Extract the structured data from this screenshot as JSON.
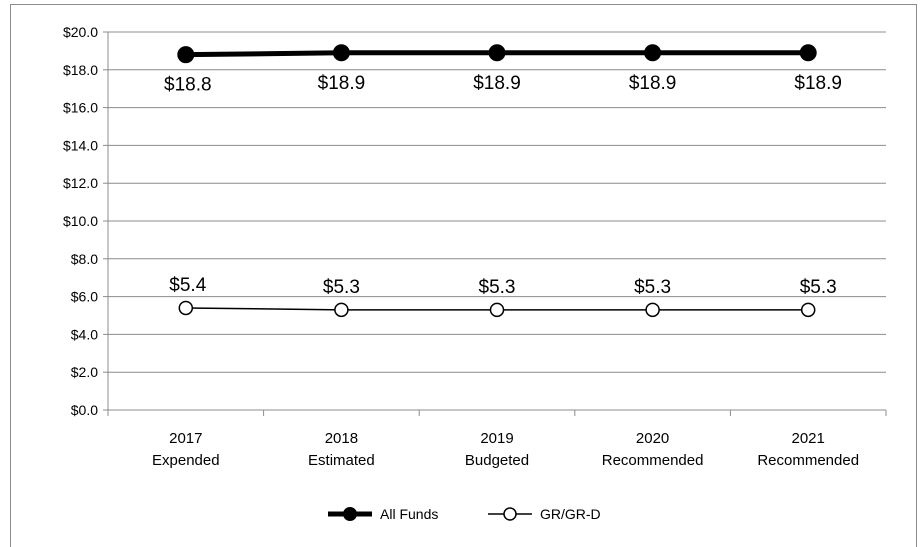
{
  "chart_data": {
    "type": "line",
    "title": "",
    "xlabel": "",
    "ylabel": "",
    "categories": [
      [
        "2017",
        "Expended"
      ],
      [
        "2018",
        "Estimated"
      ],
      [
        "2019",
        "Budgeted"
      ],
      [
        "2020",
        "Recommended"
      ],
      [
        "2021",
        "Recommended"
      ]
    ],
    "ylim": [
      0,
      20
    ],
    "y_ticks": [
      0,
      2,
      4,
      6,
      8,
      10,
      12,
      14,
      16,
      18,
      20
    ],
    "y_tick_labels": [
      "$0.0",
      "$2.0",
      "$4.0",
      "$6.0",
      "$8.0",
      "$10.0",
      "$12.0",
      "$14.0",
      "$16.0",
      "$18.0",
      "$20.0"
    ],
    "grid": true,
    "legend_position": "bottom",
    "series": [
      {
        "name": "All Funds",
        "values": [
          18.8,
          18.9,
          18.9,
          18.9,
          18.9
        ],
        "data_labels": [
          "$18.8",
          "$18.9",
          "$18.9",
          "$18.9",
          "$18.9"
        ],
        "color": "#000000",
        "marker": "filled-circle",
        "label_placement": "below"
      },
      {
        "name": "GR/GR-D",
        "values": [
          5.4,
          5.3,
          5.3,
          5.3,
          5.3
        ],
        "data_labels": [
          "$5.4",
          "$5.3",
          "$5.3",
          "$5.3",
          "$5.3"
        ],
        "color": "#000000",
        "marker": "open-circle",
        "label_placement": "above"
      }
    ]
  }
}
